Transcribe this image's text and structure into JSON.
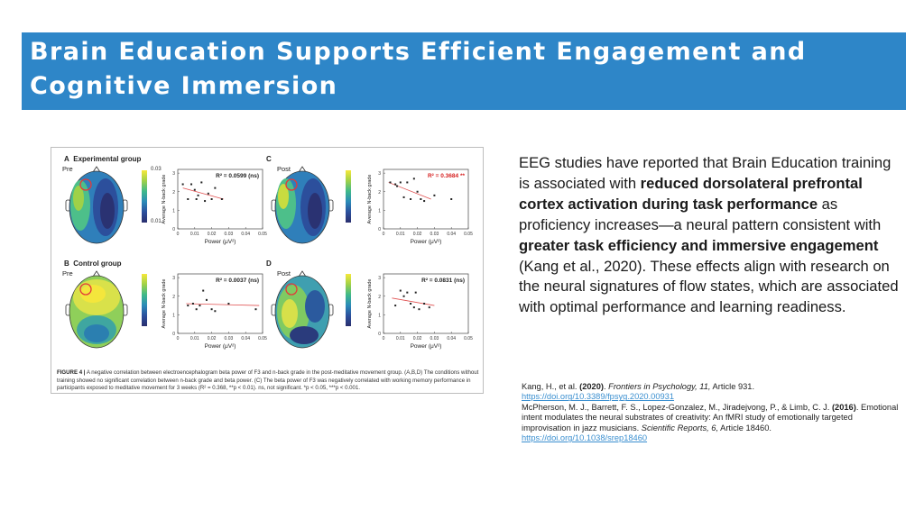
{
  "slide": {
    "title": "Brain Education Supports Efficient Engagement and Cognitive Immersion",
    "body": {
      "p1": "EEG studies have reported that Brain Education training is associated with ",
      "b1": "reduced dorsolateral prefrontal cortex activation during task performance",
      "p2": " as proficiency increases—a neural pattern consistent with ",
      "b2": "greater task efficiency and immersive engagement",
      "p3": " (Kang et al., 2020). These effects align with research on the neural signatures of flow states, which are associated with optimal performance and learning readiness."
    },
    "references": [
      {
        "authors": "Kang, H., et al. ",
        "year": "(2020)",
        "mid": ". ",
        "journal": "Frontiers in Psychology, 11,",
        "tail": " Article 931.",
        "link": "https://doi.org/10.3389/fpsyg.2020.00931"
      },
      {
        "authors": "McPherson, M. J., Barrett, F. S., Lopez-Gonzalez, M., Jiradejvong, P., & Limb, C. J. ",
        "year": "(2016)",
        "mid": ". Emotional intent modulates the neural substrates of creativity: An fMRI study of emotionally targeted improvisation in jazz musicians. ",
        "journal": "Scientific Reports, 6,",
        "tail": " Article 18460.",
        "link": "https://doi.org/10.1038/srep18460"
      }
    ]
  },
  "figure": {
    "panels": {
      "A": {
        "letter": "A",
        "group": "Experimental group",
        "condition": "Pre",
        "cb_max": "0.03",
        "cb_min": "0.01"
      },
      "B": {
        "letter": "B",
        "group": "Control group",
        "condition": "Pre"
      },
      "C": {
        "letter": "C",
        "condition": "Post"
      },
      "D": {
        "letter": "D",
        "condition": "Post"
      }
    },
    "caption": {
      "label": "FIGURE 4 |",
      "text": " A negative correlation between electroencephalogram beta power of F3 and n-back grade in the post-meditative movement group. (A,B,D) The conditions without training showed no significant correlation between n-back grade and beta power. (C) The beta power of F3 was negatively correlated with working memory performance in participants exposed to meditative movement for 3 weeks (R² = 0.368, **p < 0.01). ns, not significant. *p < 0.05, ***p < 0.001."
    },
    "colors": {
      "positive_fit": "#e05050",
      "sig_label": "#d62020"
    }
  },
  "chart_data": [
    {
      "type": "scatter",
      "panel": "A",
      "r2_label": "R² = 0.0599 (ns)",
      "significant": false,
      "xlabel": "Power (μV²)",
      "ylabel": "Average N-back grade",
      "xlim": [
        0,
        0.05
      ],
      "ylim": [
        0,
        3.2
      ],
      "xticks": [
        "0",
        "0.01",
        "0.02",
        "0.03",
        "0.04",
        "0.05"
      ],
      "yticks": [
        "0",
        "1",
        "2",
        "3"
      ],
      "x": [
        0.003,
        0.006,
        0.008,
        0.01,
        0.011,
        0.012,
        0.014,
        0.016,
        0.018,
        0.02,
        0.022,
        0.026
      ],
      "y": [
        2.4,
        1.6,
        2.4,
        2.1,
        1.6,
        1.8,
        2.5,
        1.5,
        1.9,
        1.6,
        2.2,
        1.6
      ],
      "fit": [
        [
          0.003,
          2.2
        ],
        [
          0.027,
          1.6
        ]
      ]
    },
    {
      "type": "scatter",
      "panel": "C",
      "r2_label": "R² = 0.3684 **",
      "significant": true,
      "xlabel": "Power (μV²)",
      "ylabel": "Average N-back grade",
      "xlim": [
        0,
        0.05
      ],
      "ylim": [
        0,
        3.2
      ],
      "xticks": [
        "0",
        "0.01",
        "0.02",
        "0.03",
        "0.04",
        "0.05"
      ],
      "yticks": [
        "0",
        "1",
        "2",
        "3"
      ],
      "x": [
        0.004,
        0.007,
        0.008,
        0.01,
        0.012,
        0.014,
        0.016,
        0.018,
        0.02,
        0.022,
        0.024,
        0.03,
        0.04
      ],
      "y": [
        2.5,
        2.4,
        2.3,
        2.5,
        1.7,
        2.5,
        1.6,
        2.7,
        2.0,
        1.6,
        1.5,
        1.8,
        1.6
      ],
      "fit": [
        [
          0.003,
          2.5
        ],
        [
          0.028,
          1.6
        ]
      ]
    },
    {
      "type": "scatter",
      "panel": "B",
      "r2_label": "R² = 0.0037 (ns)",
      "significant": false,
      "xlabel": "Power (μV²)",
      "ylabel": "Average N-back grade",
      "xlim": [
        0,
        0.05
      ],
      "ylim": [
        0,
        3.2
      ],
      "xticks": [
        "0",
        "0.01",
        "0.02",
        "0.03",
        "0.04",
        "0.05"
      ],
      "yticks": [
        "0",
        "1",
        "2",
        "3"
      ],
      "x": [
        0.006,
        0.009,
        0.011,
        0.013,
        0.015,
        0.017,
        0.02,
        0.022,
        0.03,
        0.046
      ],
      "y": [
        1.5,
        1.6,
        1.3,
        1.5,
        2.3,
        1.8,
        1.3,
        1.2,
        1.6,
        1.3
      ],
      "fit": [
        [
          0.005,
          1.6
        ],
        [
          0.048,
          1.5
        ]
      ]
    },
    {
      "type": "scatter",
      "panel": "D",
      "r2_label": "R² = 0.0831 (ns)",
      "significant": false,
      "xlabel": "Power (μV²)",
      "ylabel": "Average N-back grade",
      "xlim": [
        0,
        0.05
      ],
      "ylim": [
        0,
        3.2
      ],
      "xticks": [
        "0",
        "0.01",
        "0.02",
        "0.03",
        "0.04",
        "0.05"
      ],
      "yticks": [
        "0",
        "1",
        "2",
        "3"
      ],
      "x": [
        0.007,
        0.01,
        0.012,
        0.014,
        0.016,
        0.018,
        0.019,
        0.021,
        0.024,
        0.027
      ],
      "y": [
        1.5,
        2.3,
        2.0,
        2.2,
        1.6,
        1.4,
        2.2,
        1.3,
        1.6,
        1.4
      ],
      "fit": [
        [
          0.005,
          1.9
        ],
        [
          0.03,
          1.5
        ]
      ]
    }
  ]
}
